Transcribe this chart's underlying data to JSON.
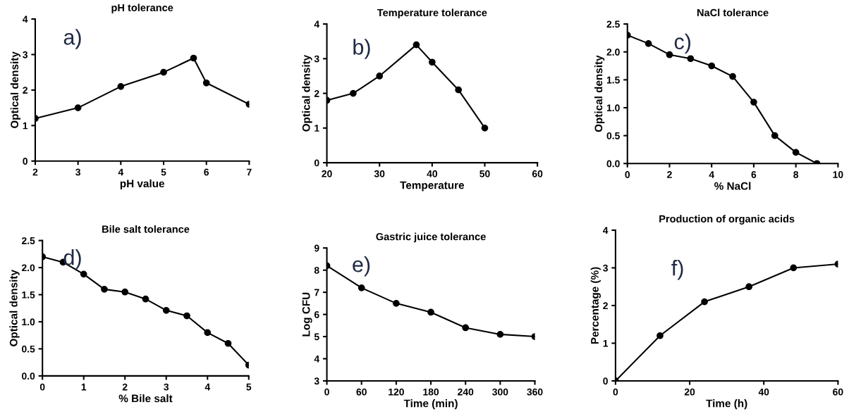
{
  "chart_data": [
    {
      "type": "line",
      "title": "pH tolerance",
      "xlabel": "pH value",
      "ylabel": "Optical density",
      "annotations": [
        "a)"
      ],
      "x": [
        2,
        3,
        4,
        5,
        5.7,
        6,
        7
      ],
      "series": [
        {
          "color": "#000000",
          "values": [
            1.2,
            1.5,
            2.1,
            2.5,
            2.9,
            2.2,
            1.6
          ]
        }
      ],
      "xlim": [
        2,
        7
      ],
      "xticks": [
        2,
        3,
        4,
        5,
        6,
        7
      ],
      "ylim": [
        0,
        4
      ],
      "yticks": [
        0,
        1,
        2,
        3,
        4
      ],
      "marker": "circle",
      "line_style": "solid",
      "grid": false
    },
    {
      "type": "line",
      "title": "Temperature tolerance",
      "xlabel": "Temperature",
      "ylabel": "Optical density",
      "annotations": [
        "b)"
      ],
      "x": [
        20,
        25,
        30,
        37,
        40,
        45,
        50
      ],
      "series": [
        {
          "color": "#000000",
          "values": [
            1.8,
            2.0,
            2.5,
            3.4,
            2.9,
            2.1,
            1.0
          ]
        }
      ],
      "xlim": [
        20,
        60
      ],
      "xticks": [
        20,
        30,
        40,
        50,
        60
      ],
      "ylim": [
        0,
        4
      ],
      "yticks": [
        0,
        1,
        2,
        3,
        4
      ],
      "marker": "circle",
      "line_style": "solid",
      "grid": false
    },
    {
      "type": "line",
      "title": "NaCl tolerance",
      "xlabel": "% NaCl",
      "ylabel": "Optical density",
      "annotations": [
        "c)"
      ],
      "x": [
        0,
        1,
        2,
        3,
        4,
        5,
        6,
        7,
        8,
        9
      ],
      "series": [
        {
          "color": "#000000",
          "values": [
            2.3,
            2.15,
            1.95,
            1.88,
            1.75,
            1.56,
            1.1,
            0.5,
            0.2,
            0.0
          ]
        }
      ],
      "xlim": [
        0,
        10
      ],
      "xticks": [
        0,
        2,
        4,
        6,
        8,
        10
      ],
      "ylim": [
        0,
        2.5
      ],
      "yticks": [
        {
          "value": 0,
          "label": "0.0"
        },
        {
          "value": 0.5,
          "label": "0.5"
        },
        {
          "value": 1,
          "label": "1.0"
        },
        {
          "value": 1.5,
          "label": "1.5"
        },
        {
          "value": 2,
          "label": "2.0"
        },
        {
          "value": 2.5,
          "label": "2.5"
        }
      ],
      "marker": "circle",
      "line_style": "solid",
      "grid": false
    },
    {
      "type": "line",
      "title": "Bile salt tolerance",
      "xlabel": "% Bile salt",
      "ylabel": "Optical density",
      "annotations": [
        "d)"
      ],
      "x": [
        0,
        0.5,
        1,
        1.5,
        2,
        2.5,
        3,
        3.5,
        4,
        4.5,
        5
      ],
      "series": [
        {
          "color": "#000000",
          "values": [
            2.2,
            2.1,
            1.88,
            1.6,
            1.55,
            1.42,
            1.21,
            1.11,
            0.8,
            0.6,
            0.2
          ]
        }
      ],
      "xlim": [
        0,
        5
      ],
      "xticks": [
        0,
        1,
        2,
        3,
        4,
        5
      ],
      "ylim": [
        0,
        2.5
      ],
      "yticks": [
        {
          "value": 0,
          "label": "0.0"
        },
        {
          "value": 0.5,
          "label": "0.5"
        },
        {
          "value": 1,
          "label": "1.0"
        },
        {
          "value": 1.5,
          "label": "1.5"
        },
        {
          "value": 2,
          "label": "2.0"
        },
        {
          "value": 2.5,
          "label": "2.5"
        }
      ],
      "marker": "circle",
      "line_style": "solid",
      "grid": false
    },
    {
      "type": "line",
      "title": "Gastric juice tolerance",
      "xlabel": "Time (min)",
      "ylabel": "Log CFU",
      "annotations": [
        "e)"
      ],
      "x": [
        0,
        60,
        120,
        180,
        240,
        300,
        360
      ],
      "series": [
        {
          "color": "#000000",
          "values": [
            8.2,
            7.2,
            6.5,
            6.1,
            5.4,
            5.1,
            5.0
          ]
        }
      ],
      "xlim": [
        0,
        360
      ],
      "xticks": [
        0,
        60,
        120,
        180,
        240,
        300,
        360
      ],
      "ylim": [
        3,
        9
      ],
      "yticks": [
        3,
        4,
        5,
        6,
        7,
        8,
        9
      ],
      "marker": "circle",
      "line_style": "solid",
      "grid": false
    },
    {
      "type": "line",
      "title": "Production of organic acids",
      "xlabel": "Time (h)",
      "ylabel": "Percentage (%)",
      "annotations": [
        "f)"
      ],
      "x": [
        0,
        12,
        24,
        36,
        48,
        60
      ],
      "series": [
        {
          "color": "#000000",
          "values": [
            0,
            1.2,
            2.1,
            2.5,
            3.0,
            3.1
          ]
        }
      ],
      "xlim": [
        0,
        60
      ],
      "xticks": [
        0,
        20,
        40,
        60
      ],
      "ylim": [
        0,
        4
      ],
      "yticks": [
        0,
        1,
        2,
        3,
        4
      ],
      "marker": "circle",
      "line_style": "solid",
      "grid": false
    }
  ]
}
